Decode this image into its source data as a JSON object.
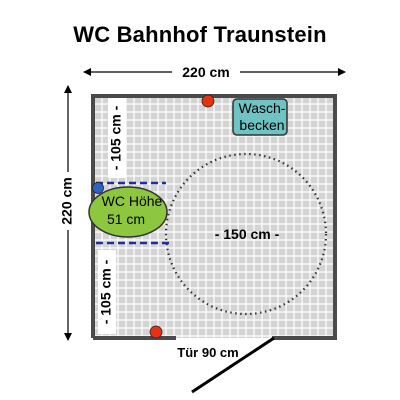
{
  "title": "WC Bahnhof Traunstein",
  "dimensions": {
    "width_label": "220 cm",
    "height_label": "220 cm",
    "wc_side_top": "- 105 cm -",
    "wc_side_bottom": "- 105 cm -",
    "turning_circle": "- 150 cm -",
    "door": "Tür 90 cm"
  },
  "fixtures": {
    "washbasin_line1": "Wasch-",
    "washbasin_line2": "becken",
    "wc_line1": "WC Höhe",
    "wc_line2": "51 cm"
  },
  "colors": {
    "tile": "#d4d4d4",
    "grout": "#ffffff",
    "wall": "#4a4a4a",
    "washbasin": "#6fc3c3",
    "wc": "#8dc63f",
    "marker_red": "#e53312",
    "marker_blue": "#2f63c0",
    "dashed_blue": "#1f2f9f"
  }
}
